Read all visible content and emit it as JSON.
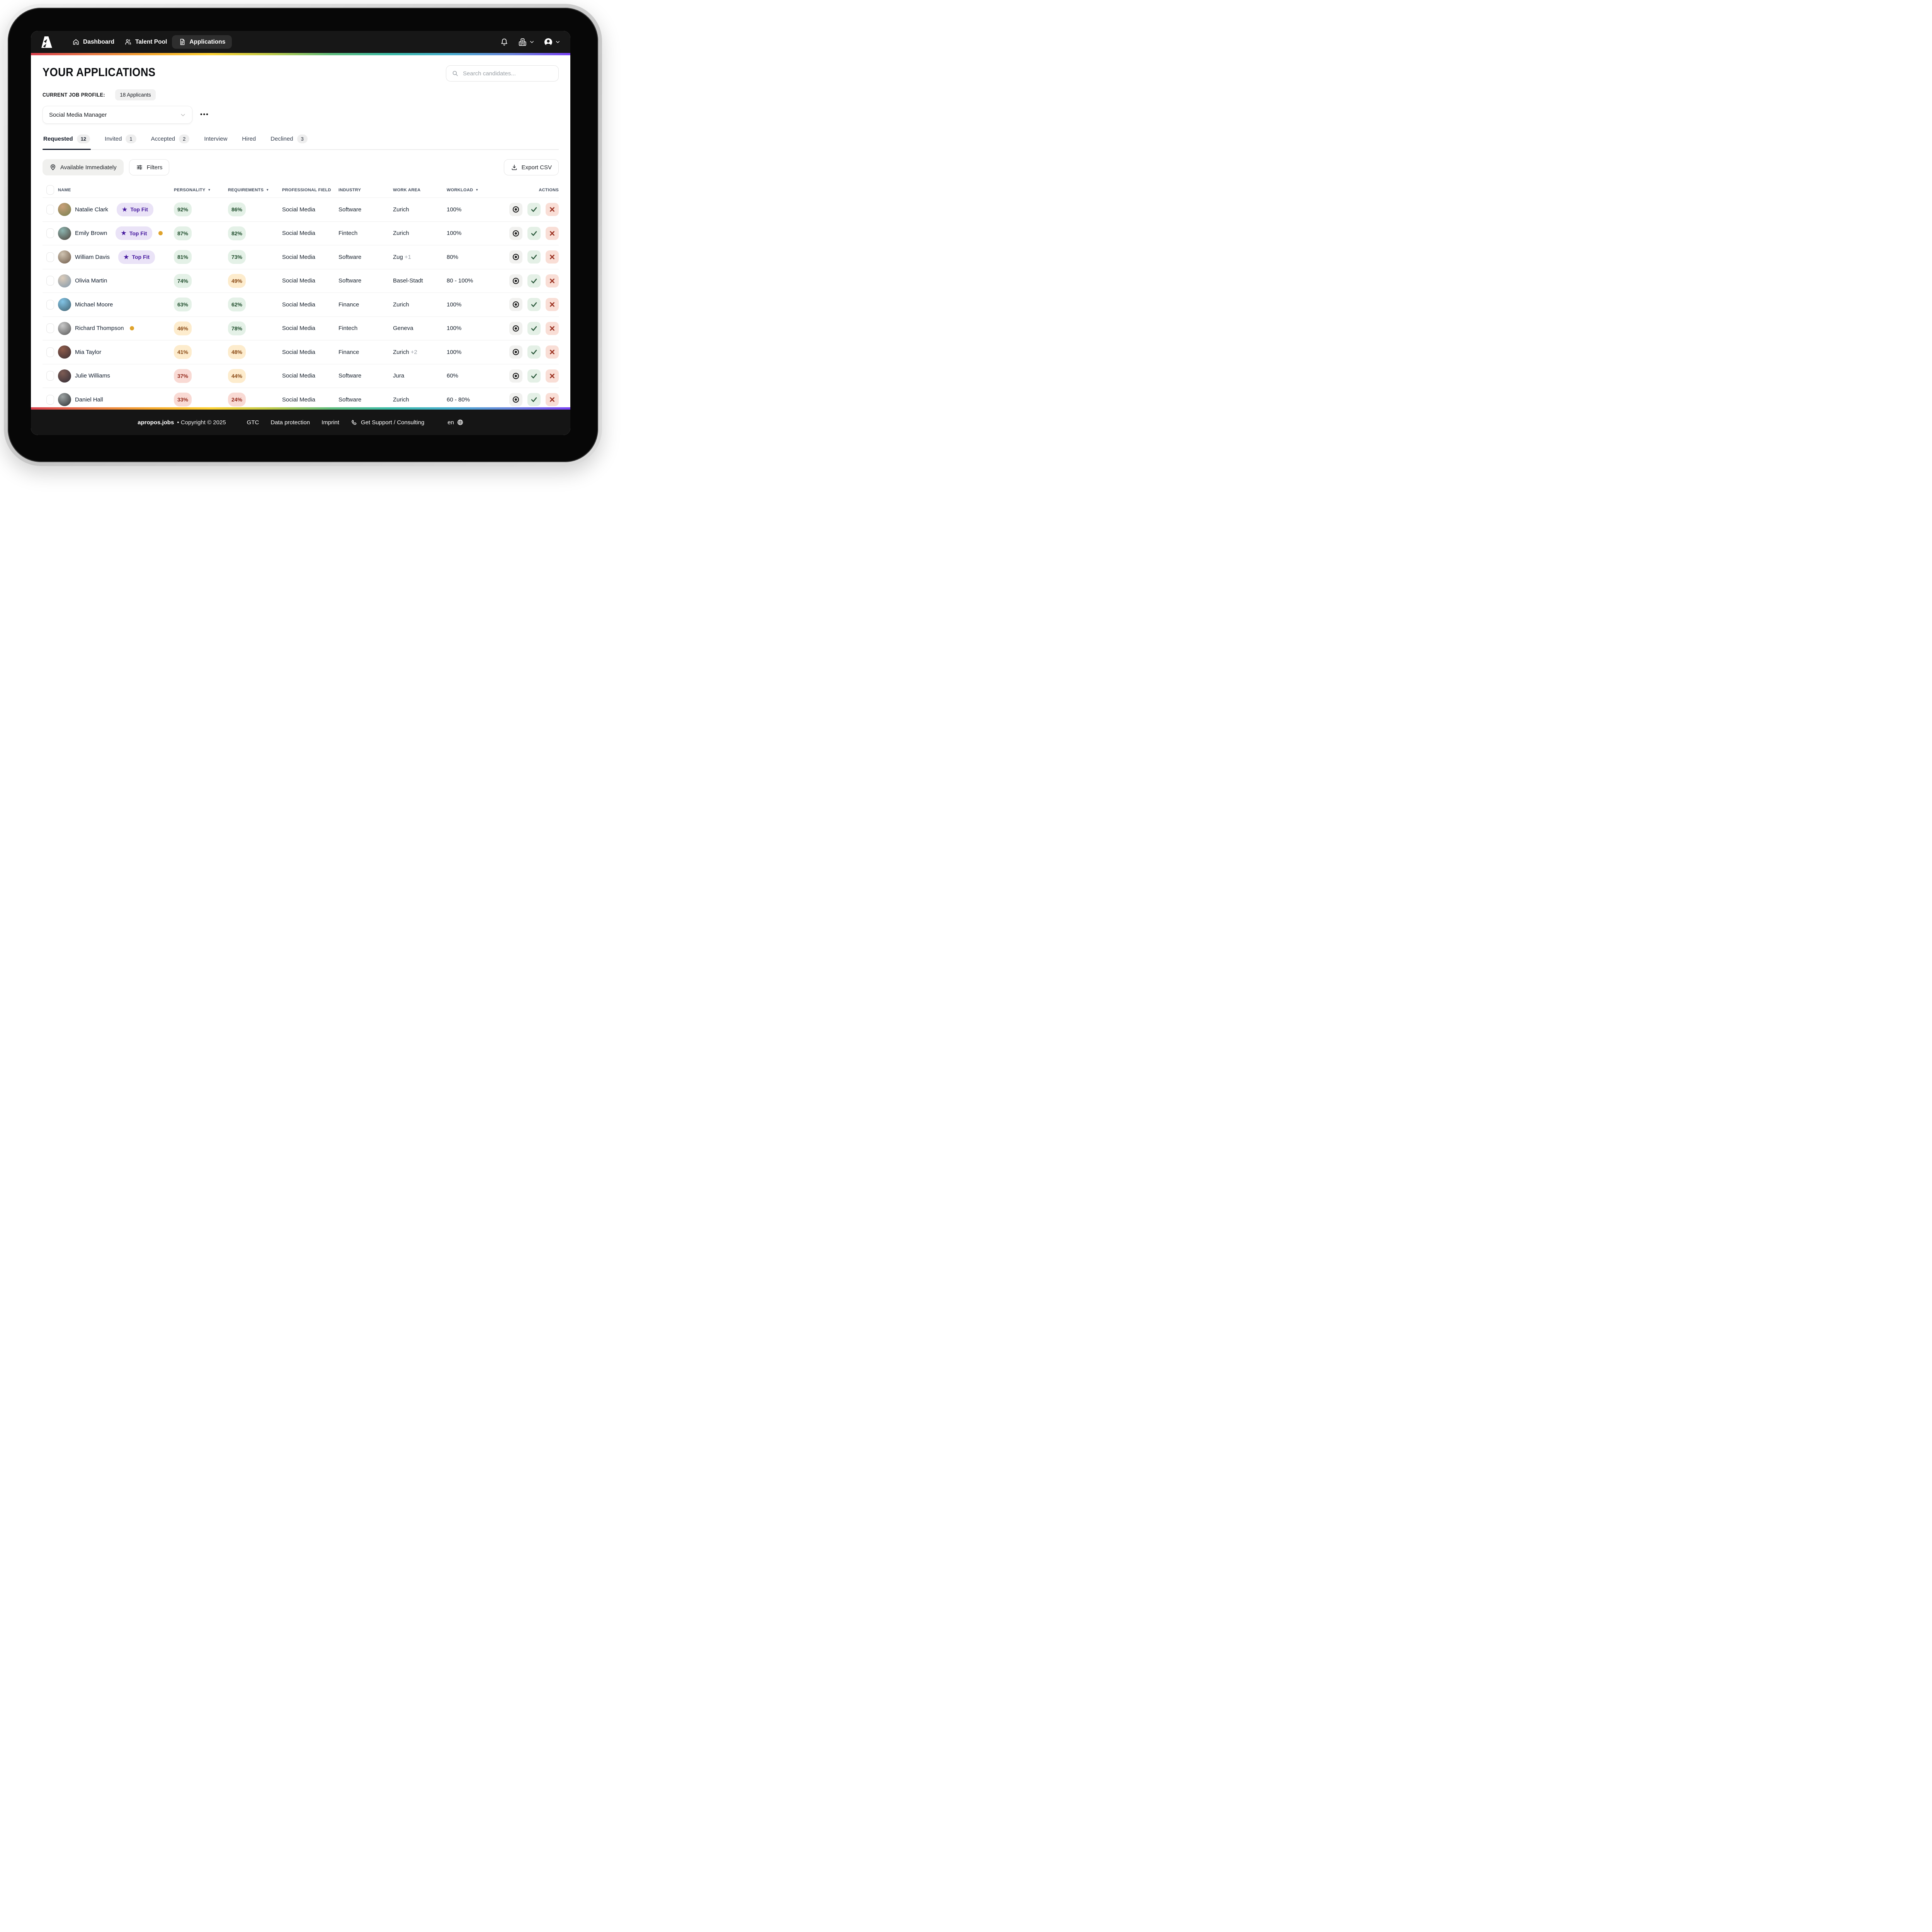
{
  "nav": {
    "logo": "apropos-logo",
    "items": [
      {
        "label": "Dashboard",
        "icon": "home-icon",
        "active": false
      },
      {
        "label": "Talent Pool",
        "icon": "people-icon",
        "active": false
      },
      {
        "label": "Applications",
        "icon": "document-icon",
        "active": true
      }
    ]
  },
  "page": {
    "title": "YOUR APPLICATIONS",
    "search_placeholder": "Search candidates...",
    "current_job_profile_label": "CURRENT JOB PROFILE:",
    "applicants_badge": "18 Applicants",
    "job_profile_selected": "Social Media Manager",
    "more_label": "•••"
  },
  "tabs": [
    {
      "label": "Requested",
      "count": "12",
      "active": true
    },
    {
      "label": "Invited",
      "count": "1",
      "active": false
    },
    {
      "label": "Accepted",
      "count": "2",
      "active": false
    },
    {
      "label": "Interview",
      "count": "",
      "active": false
    },
    {
      "label": "Hired",
      "count": "",
      "active": false
    },
    {
      "label": "Declined",
      "count": "3",
      "active": false
    }
  ],
  "toolbar": {
    "available_immediately": "Available Immediately",
    "filters": "Filters",
    "export_csv": "Export CSV"
  },
  "table": {
    "columns": [
      {
        "label": "NAME"
      },
      {
        "label": "PERSONALITY",
        "sortable": true
      },
      {
        "label": "REQUIREMENTS",
        "sortable": true
      },
      {
        "label": "PROFESSIONAL FIELD"
      },
      {
        "label": "INDUSTRY"
      },
      {
        "label": "WORK AREA"
      },
      {
        "label": "WORKLOAD",
        "sortable": true
      },
      {
        "label": "ACTIONS",
        "align": "right"
      }
    ],
    "top_fit_label": "Top Fit",
    "rows": [
      {
        "name": "Natalie Clark",
        "top_fit": true,
        "dot": false,
        "personality": "92%",
        "p_level": "green",
        "requirements": "86%",
        "r_level": "green",
        "field": "Social Media",
        "industry": "Software",
        "area": "Zurich",
        "area_extra": "",
        "workload": "100%",
        "avatar": [
          "#c9a079",
          "#77804f"
        ]
      },
      {
        "name": "Emily Brown",
        "top_fit": true,
        "dot": true,
        "personality": "87%",
        "p_level": "green",
        "requirements": "82%",
        "r_level": "green",
        "field": "Social Media",
        "industry": "Fintech",
        "area": "Zurich",
        "area_extra": "",
        "workload": "100%",
        "avatar": [
          "#8cb5b0",
          "#4e423a"
        ]
      },
      {
        "name": "William Davis",
        "top_fit": true,
        "dot": false,
        "personality": "81%",
        "p_level": "green",
        "requirements": "73%",
        "r_level": "green",
        "field": "Social Media",
        "industry": "Software",
        "area": "Zug",
        "area_extra": "+1",
        "workload": "80%",
        "avatar": [
          "#cfc3b1",
          "#6f5b49"
        ]
      },
      {
        "name": "Olivia Martin",
        "top_fit": false,
        "dot": false,
        "personality": "74%",
        "p_level": "green",
        "requirements": "49%",
        "r_level": "amber",
        "field": "Social Media",
        "industry": "Software",
        "area": "Basel-Stadt",
        "area_extra": "",
        "workload": "80 - 100%",
        "avatar": [
          "#dcccba",
          "#8097ab"
        ]
      },
      {
        "name": "Michael Moore",
        "top_fit": false,
        "dot": false,
        "personality": "63%",
        "p_level": "green",
        "requirements": "62%",
        "r_level": "green",
        "field": "Social Media",
        "industry": "Finance",
        "area": "Zurich",
        "area_extra": "",
        "workload": "100%",
        "avatar": [
          "#82c4e6",
          "#41606d"
        ]
      },
      {
        "name": "Richard Thompson",
        "top_fit": false,
        "dot": true,
        "personality": "46%",
        "p_level": "amber",
        "requirements": "78%",
        "r_level": "green",
        "field": "Social Media",
        "industry": "Fintech",
        "area": "Geneva",
        "area_extra": "",
        "workload": "100%",
        "avatar": [
          "#c9c9c9",
          "#565656"
        ]
      },
      {
        "name": "Mia Taylor",
        "top_fit": false,
        "dot": false,
        "personality": "41%",
        "p_level": "amber",
        "requirements": "48%",
        "r_level": "amber",
        "field": "Social Media",
        "industry": "Finance",
        "area": "Zurich",
        "area_extra": "+2",
        "workload": "100%",
        "avatar": [
          "#8f5c4b",
          "#3c3034"
        ]
      },
      {
        "name": "Julie Williams",
        "top_fit": false,
        "dot": false,
        "personality": "37%",
        "p_level": "red",
        "requirements": "44%",
        "r_level": "amber",
        "field": "Social Media",
        "industry": "Software",
        "area": "Jura",
        "area_extra": "",
        "workload": "60%",
        "avatar": [
          "#7d5c54",
          "#332e37"
        ]
      },
      {
        "name": "Daniel Hall",
        "top_fit": false,
        "dot": false,
        "personality": "33%",
        "p_level": "red",
        "requirements": "24%",
        "r_level": "red",
        "field": "Social Media",
        "industry": "Software",
        "area": "Zurich",
        "area_extra": "",
        "workload": "60 - 80%",
        "avatar": [
          "#9da3a3",
          "#2d3033"
        ]
      }
    ]
  },
  "footer": {
    "brand": "apropos.jobs",
    "copyright": "• Copyright © 2025",
    "links": [
      "GTC",
      "Data protection",
      "Imprint"
    ],
    "support": "Get Support / Consulting",
    "lang": "en"
  },
  "colors": {
    "header_bg": "#171717",
    "footer_bg": "#151515",
    "accent_gradient": [
      "#d8404d",
      "#ea7a47",
      "#f6a92f",
      "#fdd235",
      "#bfcb4a",
      "#60bd7d",
      "#3cbca8",
      "#49aed0",
      "#6b86dd",
      "#7a42f5"
    ],
    "status_green_bg": "#e4f1e7",
    "status_green_text": "#1f4d2c",
    "status_amber_bg": "#fdeccd",
    "status_amber_text": "#8a4a16",
    "status_red_bg": "#f9dad4",
    "status_red_text": "#93291b",
    "top_fit_bg": "#eae3f7",
    "top_fit_text": "#45189e",
    "availability_dot": "#dfa32c"
  }
}
